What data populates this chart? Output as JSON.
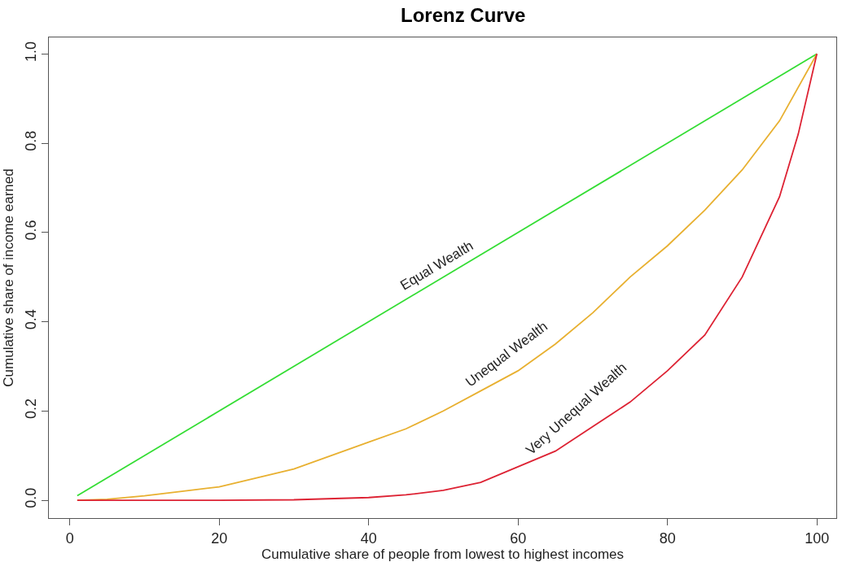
{
  "chart_data": {
    "type": "line",
    "title": "Lorenz Curve",
    "xlabel": "Cumulative share of people from lowest to highest incomes",
    "ylabel": "Cumulative share of income earned",
    "xlim": [
      -2.8,
      102.6
    ],
    "ylim": [
      -0.04,
      1.037
    ],
    "xticks": [
      0,
      20,
      40,
      60,
      80,
      100
    ],
    "yticks": [
      {
        "value": 0,
        "label": "0.0"
      },
      {
        "value": 0.2,
        "label": "0.2"
      },
      {
        "value": 0.4,
        "label": "0.4"
      },
      {
        "value": 0.6,
        "label": "0.6"
      },
      {
        "value": 0.8,
        "label": "0.8"
      },
      {
        "value": 1,
        "label": "1.0"
      }
    ],
    "legend": false,
    "marker": "none",
    "line_style": "solid",
    "series": [
      {
        "name": "Equal Wealth",
        "color": "#33dd33",
        "x": [
          1,
          100
        ],
        "values": [
          0.01,
          1
        ]
      },
      {
        "name": "Unequal Wealth",
        "color": "#e8b030",
        "x": [
          1,
          5,
          10,
          15,
          20,
          25,
          30,
          35,
          40,
          45,
          50,
          55,
          60,
          65,
          70,
          75,
          80,
          85,
          90,
          95,
          100
        ],
        "values": [
          0,
          0.002,
          0.01,
          0.02,
          0.03,
          0.05,
          0.07,
          0.1,
          0.13,
          0.16,
          0.2,
          0.245,
          0.29,
          0.35,
          0.42,
          0.5,
          0.57,
          0.65,
          0.74,
          0.85,
          1
        ]
      },
      {
        "name": "Very Unequal Wealth",
        "color": "#dd2233",
        "x": [
          1,
          10,
          20,
          30,
          40,
          45,
          50,
          55,
          60,
          65,
          70,
          75,
          80,
          85,
          90,
          95,
          97.5,
          100
        ],
        "values": [
          0,
          0,
          0,
          0.001,
          0.006,
          0.012,
          0.022,
          0.04,
          0.075,
          0.11,
          0.165,
          0.22,
          0.29,
          0.37,
          0.5,
          0.68,
          0.82,
          1
        ]
      }
    ]
  }
}
